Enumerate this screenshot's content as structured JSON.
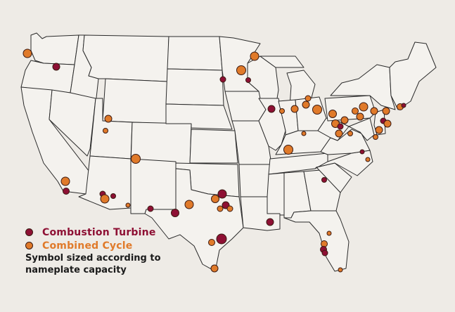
{
  "colors": {
    "background": "#eeebe6",
    "land": "#f4f2ee",
    "border": "#2a2a2a",
    "combustion_turbine": "#8e1034",
    "combined_cycle": "#e07a2a",
    "marker_stroke": "#3b1a12"
  },
  "legend": {
    "items": [
      {
        "label": "Combustion Turbine",
        "color": "#8e1034"
      },
      {
        "label": "Combined Cycle",
        "color": "#e07a2a"
      }
    ],
    "note": "Symbol sized according to nameplate capacity"
  }
}
